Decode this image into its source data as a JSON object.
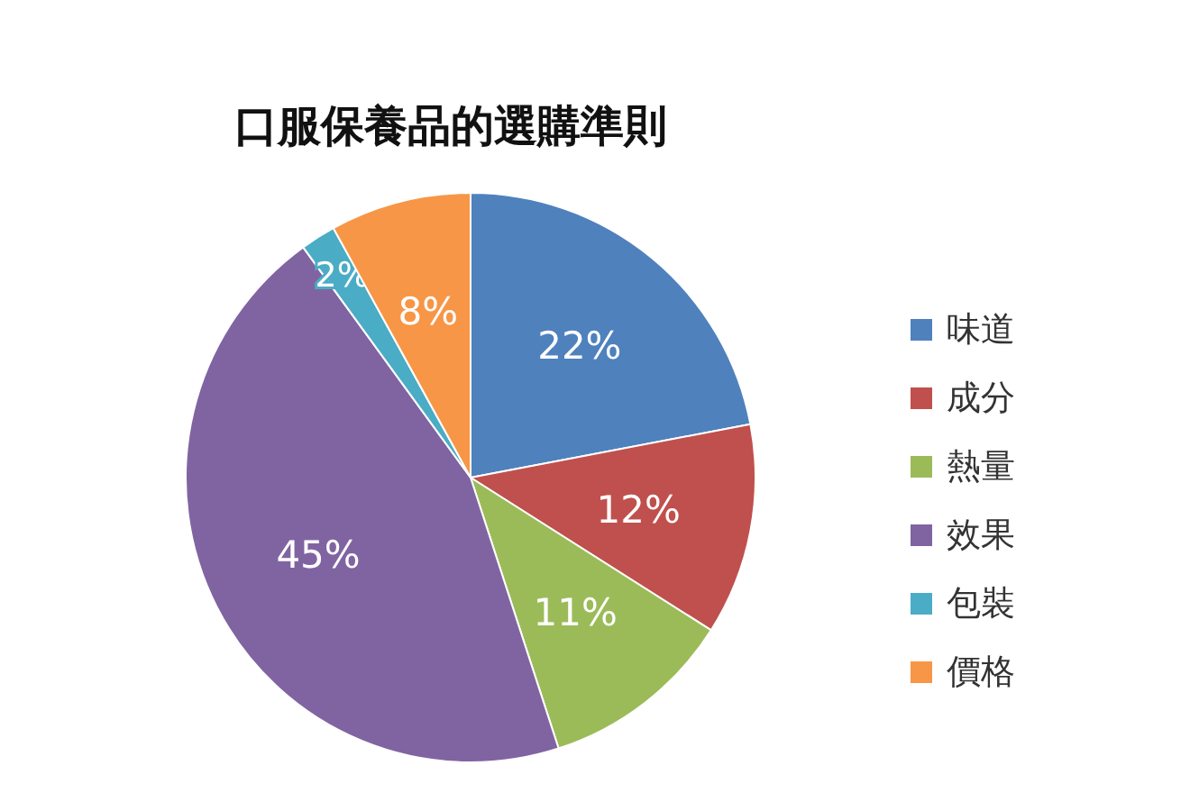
{
  "chart_data": {
    "type": "pie",
    "title": "口服保養品的選購準則",
    "categories": [
      "味道",
      "成分",
      "熱量",
      "效果",
      "包裝",
      "價格"
    ],
    "values": [
      22,
      12,
      11,
      45,
      2,
      8
    ],
    "colors": [
      "#4f81bd",
      "#c0504d",
      "#9bbb59",
      "#8064a2",
      "#4bacc6",
      "#f79646"
    ],
    "value_labels": [
      "22%",
      "12%",
      "11%",
      "45%",
      "2%",
      "8%"
    ],
    "legend": "right"
  }
}
